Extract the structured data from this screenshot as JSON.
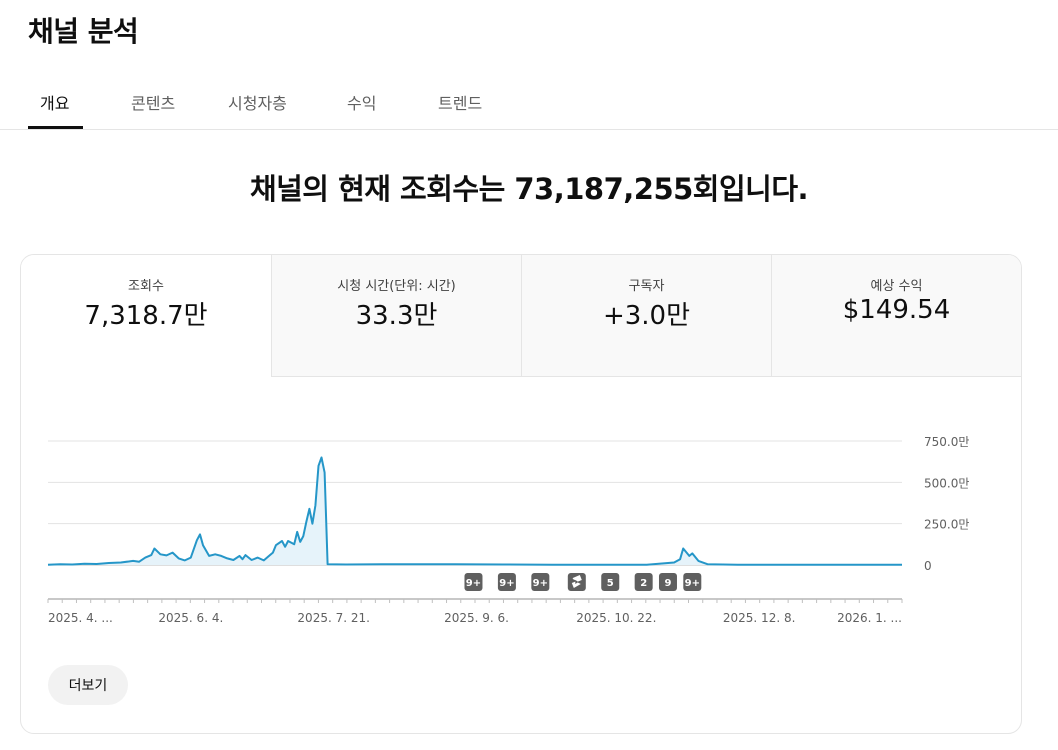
{
  "page_title": "채널 분석",
  "tabs": [
    {
      "label": "개요",
      "active": true
    },
    {
      "label": "콘텐츠",
      "active": false
    },
    {
      "label": "시청자층",
      "active": false
    },
    {
      "label": "수익",
      "active": false
    },
    {
      "label": "트렌드",
      "active": false
    }
  ],
  "headline": "채널의 현재 조회수는 73,187,255회입니다.",
  "metrics": [
    {
      "label": "조회수",
      "value": "7,318.7만",
      "active": true
    },
    {
      "label": "시청 시간(단위: 시간)",
      "value": "33.3만",
      "active": false
    },
    {
      "label": "구독자",
      "value": "+3.0만",
      "active": false
    },
    {
      "label": "예상 수익",
      "value": "$149.54",
      "active": false
    }
  ],
  "colors": {
    "line": "#2596c8",
    "fill": "#e6f3fa",
    "marker_bg": "#5f5f5f"
  },
  "more_button": "더보기",
  "chart_data": {
    "type": "area",
    "series_name": "조회수",
    "y_unit": "만",
    "ylim": [
      0,
      900
    ],
    "y_ticks": [
      0,
      250,
      500,
      750
    ],
    "y_tick_labels": [
      "0",
      "250.0만",
      "500.0만",
      "750.0만"
    ],
    "x_tick_labels": [
      "2025. 4. ...",
      "2025. 6. 4.",
      "2025. 7. 21.",
      "2025. 9. 6.",
      "2025. 10. 22.",
      "2025. 12. 8.",
      "2026. 1. ..."
    ],
    "x_tick_dates": [
      "2025-04-18",
      "2025-06-04",
      "2025-07-21",
      "2025-09-06",
      "2025-10-22",
      "2025-12-08",
      "2026-01-24"
    ],
    "grid": true,
    "points": [
      [
        "2025-04-18",
        2
      ],
      [
        "2025-04-22",
        5
      ],
      [
        "2025-04-26",
        3
      ],
      [
        "2025-04-30",
        8
      ],
      [
        "2025-05-04",
        6
      ],
      [
        "2025-05-08",
        12
      ],
      [
        "2025-05-12",
        15
      ],
      [
        "2025-05-16",
        25
      ],
      [
        "2025-05-18",
        20
      ],
      [
        "2025-05-20",
        45
      ],
      [
        "2025-05-22",
        60
      ],
      [
        "2025-05-23",
        100
      ],
      [
        "2025-05-25",
        65
      ],
      [
        "2025-05-27",
        58
      ],
      [
        "2025-05-29",
        75
      ],
      [
        "2025-05-31",
        40
      ],
      [
        "2025-06-02",
        28
      ],
      [
        "2025-06-04",
        45
      ],
      [
        "2025-06-06",
        150
      ],
      [
        "2025-06-07",
        185
      ],
      [
        "2025-06-08",
        120
      ],
      [
        "2025-06-10",
        55
      ],
      [
        "2025-06-12",
        65
      ],
      [
        "2025-06-14",
        55
      ],
      [
        "2025-06-16",
        40
      ],
      [
        "2025-06-18",
        30
      ],
      [
        "2025-06-20",
        55
      ],
      [
        "2025-06-21",
        35
      ],
      [
        "2025-06-22",
        60
      ],
      [
        "2025-06-24",
        30
      ],
      [
        "2025-06-26",
        45
      ],
      [
        "2025-06-28",
        28
      ],
      [
        "2025-06-30",
        60
      ],
      [
        "2025-07-01",
        75
      ],
      [
        "2025-07-02",
        120
      ],
      [
        "2025-07-04",
        145
      ],
      [
        "2025-07-05",
        110
      ],
      [
        "2025-07-06",
        145
      ],
      [
        "2025-07-08",
        125
      ],
      [
        "2025-07-09",
        200
      ],
      [
        "2025-07-10",
        140
      ],
      [
        "2025-07-11",
        175
      ],
      [
        "2025-07-12",
        260
      ],
      [
        "2025-07-13",
        340
      ],
      [
        "2025-07-14",
        250
      ],
      [
        "2025-07-15",
        360
      ],
      [
        "2025-07-16",
        600
      ],
      [
        "2025-07-17",
        650
      ],
      [
        "2025-07-18",
        560
      ],
      [
        "2025-07-19",
        5
      ],
      [
        "2025-07-25",
        3
      ],
      [
        "2025-08-10",
        5
      ],
      [
        "2025-08-30",
        4
      ],
      [
        "2025-09-15",
        3
      ],
      [
        "2025-10-01",
        2
      ],
      [
        "2025-10-20",
        2
      ],
      [
        "2025-11-01",
        2
      ],
      [
        "2025-11-10",
        15
      ],
      [
        "2025-11-12",
        35
      ],
      [
        "2025-11-13",
        100
      ],
      [
        "2025-11-15",
        55
      ],
      [
        "2025-11-16",
        70
      ],
      [
        "2025-11-18",
        25
      ],
      [
        "2025-11-21",
        5
      ],
      [
        "2025-12-01",
        2
      ],
      [
        "2026-01-24",
        1
      ]
    ],
    "content_markers": [
      {
        "date": "2025-09-05",
        "label": "9+",
        "kind": "count"
      },
      {
        "date": "2025-09-16",
        "label": "9+",
        "kind": "count"
      },
      {
        "date": "2025-09-27",
        "label": "9+",
        "kind": "count"
      },
      {
        "date": "2025-10-09",
        "label": "",
        "kind": "shorts-icon"
      },
      {
        "date": "2025-10-20",
        "label": "5",
        "kind": "count"
      },
      {
        "date": "2025-10-31",
        "label": "2",
        "kind": "count"
      },
      {
        "date": "2025-11-08",
        "label": "9",
        "kind": "count"
      },
      {
        "date": "2025-11-16",
        "label": "9+",
        "kind": "count"
      }
    ]
  }
}
